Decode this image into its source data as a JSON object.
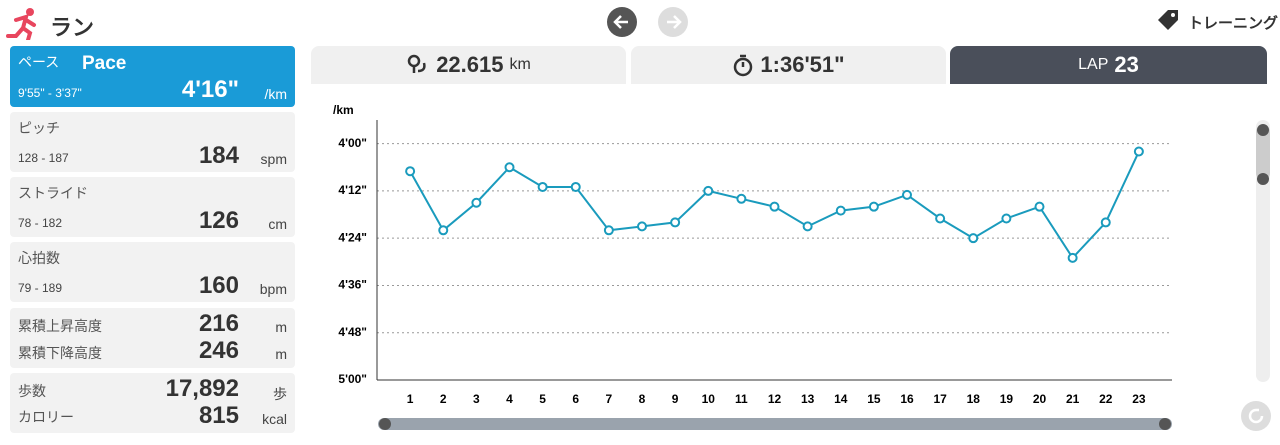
{
  "header": {
    "title": "ラン",
    "training": "トレーニング"
  },
  "stats": [
    {
      "label": "ペース",
      "label_en": "Pace",
      "range": "9'55\" - 3'37\"",
      "value": "4'16\"",
      "unit": "/km"
    },
    {
      "label": "ピッチ",
      "range": "128 - 187",
      "value": "184",
      "unit": "spm"
    },
    {
      "label": "ストライド",
      "range": "78 - 182",
      "value": "126",
      "unit": "cm"
    },
    {
      "label": "心拍数",
      "range": "79 - 189",
      "value": "160",
      "unit": "bpm"
    }
  ],
  "elevation": [
    {
      "label": "累積上昇高度",
      "value": "216",
      "unit": "m"
    },
    {
      "label": "累積下降高度",
      "value": "246",
      "unit": "m"
    }
  ],
  "activity": [
    {
      "label": "歩数",
      "value": "17,892",
      "unit": "歩"
    },
    {
      "label": "カロリー",
      "value": "815",
      "unit": "kcal"
    }
  ],
  "tabs": {
    "distance": "22.615",
    "distance_unit": "km",
    "time": "1:36'51\"",
    "lap_label": "LAP",
    "lap": "23"
  },
  "chart_data": {
    "type": "line",
    "y_label": "/km",
    "categories": [
      "1",
      "2",
      "3",
      "4",
      "5",
      "6",
      "7",
      "8",
      "9",
      "10",
      "11",
      "12",
      "13",
      "14",
      "15",
      "16",
      "17",
      "18",
      "19",
      "20",
      "21",
      "22",
      "23"
    ],
    "values": [
      247,
      262,
      255,
      246,
      251,
      251,
      262,
      261,
      260,
      252,
      254,
      256,
      261,
      257,
      256,
      253,
      259,
      264,
      259,
      256,
      269,
      260,
      242
    ],
    "color": "#1a9bbd",
    "ylim": [
      300,
      234
    ],
    "yticks": [
      {
        "value": 240,
        "label": "4'00\""
      },
      {
        "value": 252,
        "label": "4'12\""
      },
      {
        "value": 264,
        "label": "4'24\""
      },
      {
        "value": 276,
        "label": "4'36\""
      },
      {
        "value": 288,
        "label": "4'48\""
      },
      {
        "value": 300,
        "label": "5'00\""
      }
    ],
    "grid": true
  }
}
